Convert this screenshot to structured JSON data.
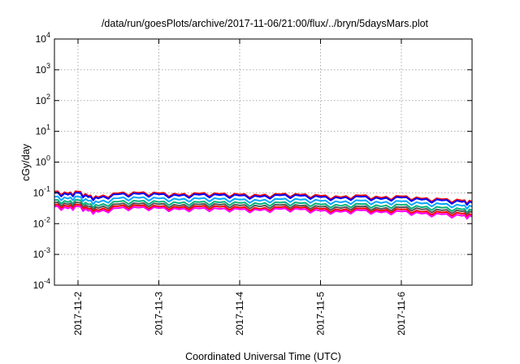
{
  "chart_data": {
    "type": "line",
    "title": "/data/run/goesPlots/archive/2017-11-06/21:00/flux/../bryn/5daysMars.plot",
    "xlabel": "Coordinated Universal Time (UTC)",
    "ylabel": "cGy/day",
    "yscale": "log",
    "ylim": [
      0.0001,
      10000
    ],
    "xlim": [
      "2017-11-01T17:00",
      "2017-11-06T21:00"
    ],
    "y_ticks": [
      {
        "value": 0.0001,
        "base": "10",
        "exp": "-4"
      },
      {
        "value": 0.001,
        "base": "10",
        "exp": "-3"
      },
      {
        "value": 0.01,
        "base": "10",
        "exp": "-2"
      },
      {
        "value": 0.1,
        "base": "10",
        "exp": "-1"
      },
      {
        "value": 1,
        "base": "10",
        "exp": "0"
      },
      {
        "value": 10,
        "base": "10",
        "exp": "1"
      },
      {
        "value": 100,
        "base": "10",
        "exp": "2"
      },
      {
        "value": 1000,
        "base": "10",
        "exp": "3"
      },
      {
        "value": 10000,
        "base": "10",
        "exp": "4"
      }
    ],
    "x_ticks": [
      {
        "date": "2017-11-02T00:00",
        "label": "2017-11-2"
      },
      {
        "date": "2017-11-03T00:00",
        "label": "2017-11-3"
      },
      {
        "date": "2017-11-04T00:00",
        "label": "2017-11-4"
      },
      {
        "date": "2017-11-05T00:00",
        "label": "2017-11-5"
      },
      {
        "date": "2017-11-06T00:00",
        "label": "2017-11-6"
      }
    ],
    "grid": true,
    "legend": "none",
    "x": [
      "2017-11-01T17:00",
      "2017-11-01T21:00",
      "2017-11-02T00:00",
      "2017-11-02T03:00",
      "2017-11-02T06:00",
      "2017-11-02T12:00",
      "2017-11-02T18:00",
      "2017-11-03T00:00",
      "2017-11-03T06:00",
      "2017-11-03T12:00",
      "2017-11-03T18:00",
      "2017-11-04T00:00",
      "2017-11-04T06:00",
      "2017-11-04T12:00",
      "2017-11-04T18:00",
      "2017-11-05T00:00",
      "2017-11-05T06:00",
      "2017-11-05T12:00",
      "2017-11-05T18:00",
      "2017-11-06T00:00",
      "2017-11-06T06:00",
      "2017-11-06T12:00",
      "2017-11-06T18:00",
      "2017-11-06T21:00"
    ],
    "series": [
      {
        "color": "#ff0000",
        "values": [
          0.11,
          0.095,
          0.11,
          0.08,
          0.072,
          0.098,
          0.1,
          0.097,
          0.087,
          0.095,
          0.092,
          0.088,
          0.081,
          0.09,
          0.087,
          0.08,
          0.072,
          0.082,
          0.069,
          0.077,
          0.065,
          0.062,
          0.056,
          0.052
        ]
      },
      {
        "color": "#0000ff",
        "values": [
          0.1,
          0.087,
          0.1,
          0.073,
          0.066,
          0.09,
          0.092,
          0.089,
          0.08,
          0.087,
          0.084,
          0.081,
          0.074,
          0.083,
          0.08,
          0.073,
          0.066,
          0.075,
          0.063,
          0.071,
          0.06,
          0.057,
          0.051,
          0.048
        ]
      },
      {
        "color": "#00a6ff",
        "values": [
          0.075,
          0.065,
          0.075,
          0.055,
          0.049,
          0.067,
          0.069,
          0.066,
          0.06,
          0.065,
          0.063,
          0.06,
          0.055,
          0.062,
          0.06,
          0.055,
          0.049,
          0.056,
          0.047,
          0.053,
          0.045,
          0.043,
          0.038,
          0.036
        ]
      },
      {
        "color": "#00b37a",
        "values": [
          0.058,
          0.05,
          0.058,
          0.042,
          0.038,
          0.052,
          0.053,
          0.051,
          0.046,
          0.05,
          0.049,
          0.047,
          0.043,
          0.048,
          0.046,
          0.042,
          0.038,
          0.043,
          0.036,
          0.041,
          0.034,
          0.033,
          0.029,
          0.027
        ]
      },
      {
        "color": "#555555",
        "values": [
          0.048,
          0.042,
          0.048,
          0.035,
          0.032,
          0.043,
          0.044,
          0.043,
          0.038,
          0.042,
          0.041,
          0.039,
          0.036,
          0.04,
          0.038,
          0.035,
          0.032,
          0.036,
          0.03,
          0.034,
          0.029,
          0.027,
          0.025,
          0.023
        ]
      },
      {
        "color": "#ff0000",
        "values": [
          0.041,
          0.036,
          0.041,
          0.03,
          0.027,
          0.037,
          0.038,
          0.036,
          0.033,
          0.036,
          0.035,
          0.033,
          0.03,
          0.034,
          0.033,
          0.03,
          0.027,
          0.031,
          0.026,
          0.029,
          0.024,
          0.023,
          0.021,
          0.019
        ]
      },
      {
        "color": "#ff00ff",
        "values": [
          0.036,
          0.031,
          0.036,
          0.026,
          0.024,
          0.032,
          0.033,
          0.032,
          0.029,
          0.031,
          0.03,
          0.029,
          0.027,
          0.03,
          0.029,
          0.026,
          0.024,
          0.027,
          0.023,
          0.025,
          0.021,
          0.02,
          0.018,
          0.017
        ]
      }
    ]
  }
}
